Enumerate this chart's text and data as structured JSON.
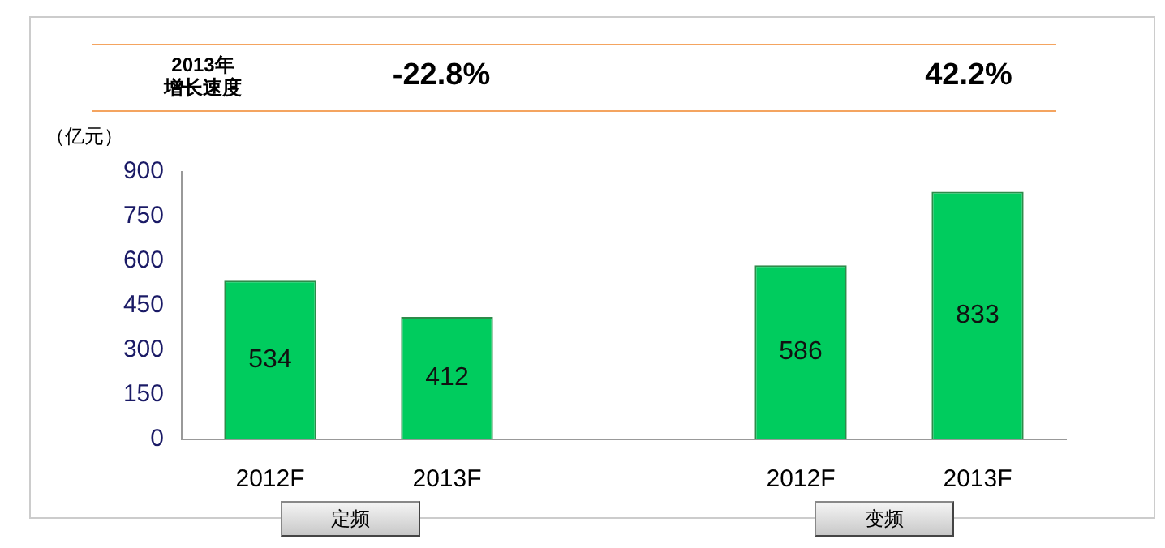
{
  "chart_data": {
    "type": "bar",
    "ylabel": "（亿元）",
    "categories": [
      "2012F",
      "2013F",
      null,
      "2012F",
      "2013F"
    ],
    "values": [
      534,
      412,
      null,
      586,
      833
    ],
    "color": "#00cc5e",
    "ylim": [
      0,
      900
    ],
    "yticks": [
      0,
      150,
      300,
      450,
      600,
      750,
      900
    ],
    "grid": false,
    "legend": false,
    "data_labels": true,
    "annotations": [
      "2013年增长速度",
      "-22.8%",
      "42.2%",
      "定频",
      "变频"
    ]
  }
}
